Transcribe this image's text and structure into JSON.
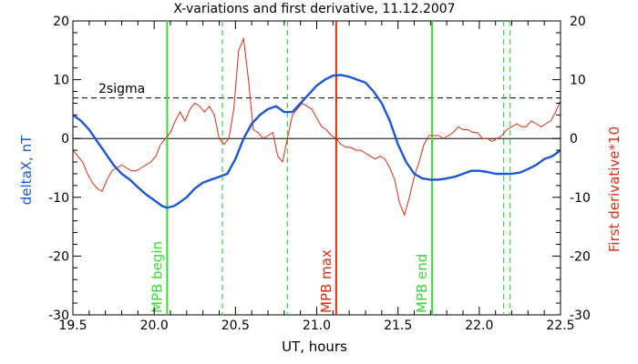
{
  "chart_data": {
    "type": "line",
    "title": "X-variations and first derivative, 11.12.2007",
    "xlabel": "UT, hours",
    "ylabel_left": "deltaX, nT",
    "ylabel_right": "First derivative*10",
    "xlim": [
      19.5,
      22.5
    ],
    "ylim": [
      -30,
      20
    ],
    "x_ticks": [
      "19.5",
      "20.0",
      "20.5",
      "21.0",
      "21.5",
      "22.0",
      "22.5"
    ],
    "y_ticks_left": [
      "-30",
      "-20",
      "-10",
      "0",
      "10",
      "20"
    ],
    "y_ticks_right": [
      "-30",
      "-20",
      "-10",
      "0",
      "10",
      "20"
    ],
    "colors": {
      "deltaX": "#1a56d6",
      "derivative": "#e02b10",
      "mpb": "#33dd33",
      "max": "#e02b10",
      "reference": "#000000"
    },
    "sigma_line": {
      "label": "2sigma",
      "value": 6.9
    },
    "zero_line": {
      "value": 0
    },
    "vertical_markers": [
      {
        "x": 20.08,
        "label": "MPB begin",
        "style": "solid",
        "color": "#33dd33"
      },
      {
        "x": 20.42,
        "label": "",
        "style": "dashed",
        "color": "#33dd33"
      },
      {
        "x": 20.82,
        "label": "",
        "style": "dashed",
        "color": "#33dd33"
      },
      {
        "x": 21.12,
        "label": "MPB max",
        "style": "solid",
        "color": "#e02b10"
      },
      {
        "x": 21.71,
        "label": "MPB end",
        "style": "solid",
        "color": "#33dd33"
      },
      {
        "x": 22.15,
        "label": "",
        "style": "dashed",
        "color": "#33dd33"
      },
      {
        "x": 22.19,
        "label": "",
        "style": "dashed",
        "color": "#33dd33"
      }
    ],
    "series": [
      {
        "name": "deltaX, nT",
        "axis": "left",
        "x": [
          19.5,
          19.55,
          19.6,
          19.65,
          19.7,
          19.75,
          19.8,
          19.85,
          19.9,
          19.95,
          20.0,
          20.05,
          20.08,
          20.12,
          20.15,
          20.2,
          20.25,
          20.3,
          20.35,
          20.4,
          20.45,
          20.5,
          20.55,
          20.6,
          20.65,
          20.7,
          20.75,
          20.8,
          20.85,
          20.9,
          20.95,
          21.0,
          21.05,
          21.1,
          21.15,
          21.2,
          21.25,
          21.3,
          21.35,
          21.4,
          21.45,
          21.5,
          21.55,
          21.6,
          21.65,
          21.7,
          21.75,
          21.8,
          21.85,
          21.9,
          21.95,
          22.0,
          22.05,
          22.1,
          22.15,
          22.2,
          22.25,
          22.3,
          22.35,
          22.4,
          22.45,
          22.5
        ],
        "values": [
          4,
          3,
          1.5,
          -0.5,
          -2.5,
          -4.5,
          -6,
          -7,
          -8.3,
          -9.5,
          -10.5,
          -11.5,
          -11.8,
          -11.5,
          -11,
          -10,
          -8.5,
          -7.5,
          -7,
          -6.5,
          -6,
          -3.5,
          0,
          2.5,
          4,
          5,
          5.5,
          4.5,
          4.5,
          6,
          7.5,
          9,
          10,
          10.7,
          10.8,
          10.5,
          10,
          9.5,
          8,
          6,
          3,
          -1,
          -4,
          -6,
          -6.8,
          -7,
          -7,
          -6.8,
          -6.5,
          -6,
          -5.5,
          -5.5,
          -5.7,
          -6,
          -6,
          -6,
          -5.8,
          -5.2,
          -4.5,
          -3.5,
          -3,
          -2
        ]
      },
      {
        "name": "First derivative*10",
        "axis": "right",
        "x": [
          19.5,
          19.53,
          19.56,
          19.59,
          19.62,
          19.65,
          19.68,
          19.71,
          19.74,
          19.77,
          19.8,
          19.83,
          19.86,
          19.89,
          19.92,
          19.95,
          19.98,
          20.01,
          20.04,
          20.07,
          20.1,
          20.13,
          20.16,
          20.19,
          20.22,
          20.25,
          20.28,
          20.31,
          20.34,
          20.37,
          20.4,
          20.43,
          20.46,
          20.49,
          20.52,
          20.55,
          20.58,
          20.61,
          20.64,
          20.67,
          20.7,
          20.73,
          20.76,
          20.79,
          20.82,
          20.85,
          20.88,
          20.91,
          20.94,
          20.97,
          21.0,
          21.03,
          21.06,
          21.09,
          21.12,
          21.15,
          21.18,
          21.21,
          21.24,
          21.27,
          21.3,
          21.33,
          21.36,
          21.39,
          21.42,
          21.45,
          21.48,
          21.51,
          21.54,
          21.57,
          21.6,
          21.63,
          21.66,
          21.69,
          21.72,
          21.75,
          21.78,
          21.81,
          21.84,
          21.87,
          21.9,
          21.93,
          21.96,
          21.99,
          22.02,
          22.05,
          22.08,
          22.11,
          22.14,
          22.17,
          22.2,
          22.23,
          22.26,
          22.29,
          22.32,
          22.35,
          22.38,
          22.41,
          22.44,
          22.47,
          22.5
        ],
        "values": [
          -2,
          -3,
          -4,
          -6,
          -7.5,
          -8.5,
          -9,
          -7,
          -5.5,
          -5,
          -4.5,
          -5,
          -5.5,
          -5.5,
          -5,
          -4.5,
          -4,
          -3,
          -1,
          0,
          1,
          3,
          4.5,
          3,
          5,
          6,
          5.5,
          4.5,
          5.5,
          4,
          0,
          -1,
          0,
          5,
          15,
          17,
          10,
          1.5,
          1,
          0,
          0.5,
          1,
          -3,
          -4,
          0,
          4,
          5,
          6,
          5.5,
          5,
          3.5,
          2,
          1.5,
          0.5,
          0,
          -1,
          -1.5,
          -1.5,
          -2,
          -2,
          -2.5,
          -3,
          -3.5,
          -3,
          -3.5,
          -5,
          -7,
          -11,
          -13,
          -10,
          -6.5,
          -4,
          -1,
          0.5,
          0.5,
          0.5,
          0,
          0.5,
          1,
          2,
          1.5,
          1.5,
          1,
          1,
          0,
          0,
          -0.5,
          0,
          0.5,
          1.5,
          2,
          2.5,
          2,
          2,
          3,
          2.5,
          2,
          2.5,
          3,
          4.5,
          6.5
        ]
      }
    ]
  }
}
